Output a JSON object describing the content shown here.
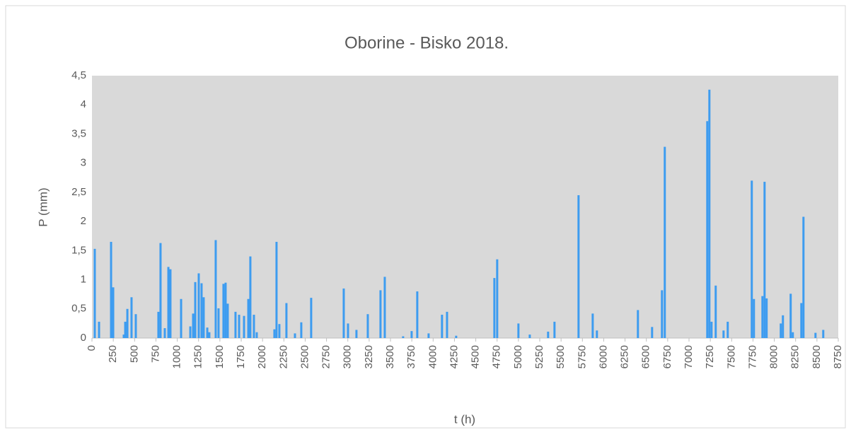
{
  "chart_data": {
    "type": "bar",
    "title": "Oborine - Bisko 2018.",
    "x_label": "t (h)",
    "y_label": "P (mm)",
    "color": "#3d9cf0",
    "grid": false,
    "x": [
      33,
      83,
      224,
      249,
      373,
      390,
      415,
      464,
      514,
      779,
      804,
      854,
      896,
      920,
      1045,
      1153,
      1186,
      1211,
      1252,
      1285,
      1310,
      1352,
      1376,
      1451,
      1484,
      1542,
      1567,
      1592,
      1683,
      1725,
      1783,
      1833,
      1857,
      1899,
      1932,
      2139,
      2164,
      2197,
      2280,
      2380,
      2454,
      2570,
      2952,
      3002,
      3101,
      3234,
      3383,
      3433,
      3648,
      3748,
      3814,
      3947,
      4104,
      4163,
      4270,
      4718,
      4751,
      5000,
      5133,
      5348,
      5423,
      5705,
      5871,
      5920,
      6401,
      6567,
      6683,
      6716,
      7214,
      7239,
      7264,
      7313,
      7405,
      7454,
      7736,
      7761,
      7861,
      7886,
      7910,
      8076,
      8101,
      8192,
      8217,
      8317,
      8342,
      8483,
      8574
    ],
    "values": [
      1.53,
      0.28,
      1.65,
      0.87,
      0.06,
      0.28,
      0.5,
      0.7,
      0.41,
      0.45,
      1.63,
      0.17,
      1.22,
      1.18,
      0.67,
      0.2,
      0.42,
      0.96,
      1.11,
      0.94,
      0.7,
      0.18,
      0.1,
      1.68,
      0.51,
      0.93,
      0.95,
      0.59,
      0.45,
      0.4,
      0.38,
      0.67,
      1.4,
      0.4,
      0.1,
      0.15,
      1.65,
      0.24,
      0.6,
      0.08,
      0.27,
      0.69,
      0.85,
      0.25,
      0.14,
      0.41,
      0.82,
      1.05,
      0.03,
      0.12,
      0.8,
      0.08,
      0.4,
      0.45,
      0.04,
      1.03,
      1.35,
      0.25,
      0.06,
      0.11,
      0.28,
      2.45,
      0.42,
      0.13,
      0.48,
      0.19,
      0.82,
      3.28,
      3.72,
      4.26,
      0.28,
      0.9,
      0.13,
      0.28,
      2.7,
      0.67,
      0.72,
      2.68,
      0.68,
      0.25,
      0.39,
      0.76,
      0.1,
      0.6,
      2.08,
      0.09,
      0.14
    ],
    "xlim": [
      0,
      8750
    ],
    "xticks": [
      0,
      250,
      500,
      750,
      1000,
      1250,
      1500,
      1750,
      2000,
      2250,
      2500,
      2750,
      3000,
      3250,
      3500,
      3750,
      4000,
      4250,
      4500,
      4750,
      5000,
      5250,
      5500,
      5750,
      6000,
      6250,
      6500,
      6750,
      7000,
      7250,
      7500,
      7750,
      8000,
      8250,
      8500,
      8750
    ],
    "ylim": [
      0,
      4.5
    ],
    "yticks": [
      0,
      {
        "value": 0.5,
        "label": "0,5"
      },
      1,
      {
        "value": 1.5,
        "label": "1,5"
      },
      2,
      {
        "value": 2.5,
        "label": "2,5"
      },
      3,
      {
        "value": 3.5,
        "label": "3,5"
      },
      4,
      {
        "value": 4.5,
        "label": "4,5"
      }
    ]
  }
}
